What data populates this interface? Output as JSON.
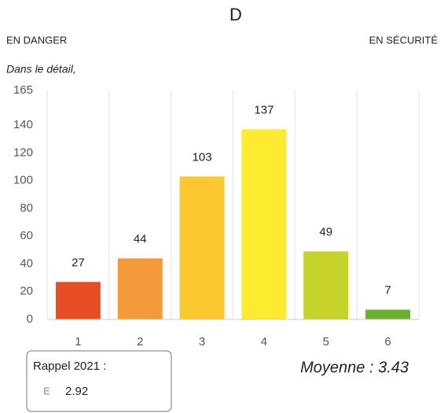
{
  "header": {
    "grade": "D",
    "left": "EN DANGER",
    "right": "EN SÉCURITÉ",
    "intro": "Dans le détail,"
  },
  "chart_data": {
    "type": "bar",
    "categories": [
      "1",
      "2",
      "3",
      "4",
      "5",
      "6"
    ],
    "values": [
      27,
      44,
      103,
      137,
      49,
      7
    ],
    "colors": [
      "#e84e24",
      "#f39a3a",
      "#fbc830",
      "#fdeb2f",
      "#c5d22a",
      "#6bb12f"
    ],
    "ylim": [
      0,
      165
    ],
    "yticks": [
      0,
      20,
      40,
      60,
      80,
      100,
      120,
      140,
      165
    ],
    "grid": true
  },
  "recall": {
    "label": "Rappel 2021 :",
    "grade": "E",
    "value": "2.92"
  },
  "average": "Moyenne : 3.43"
}
